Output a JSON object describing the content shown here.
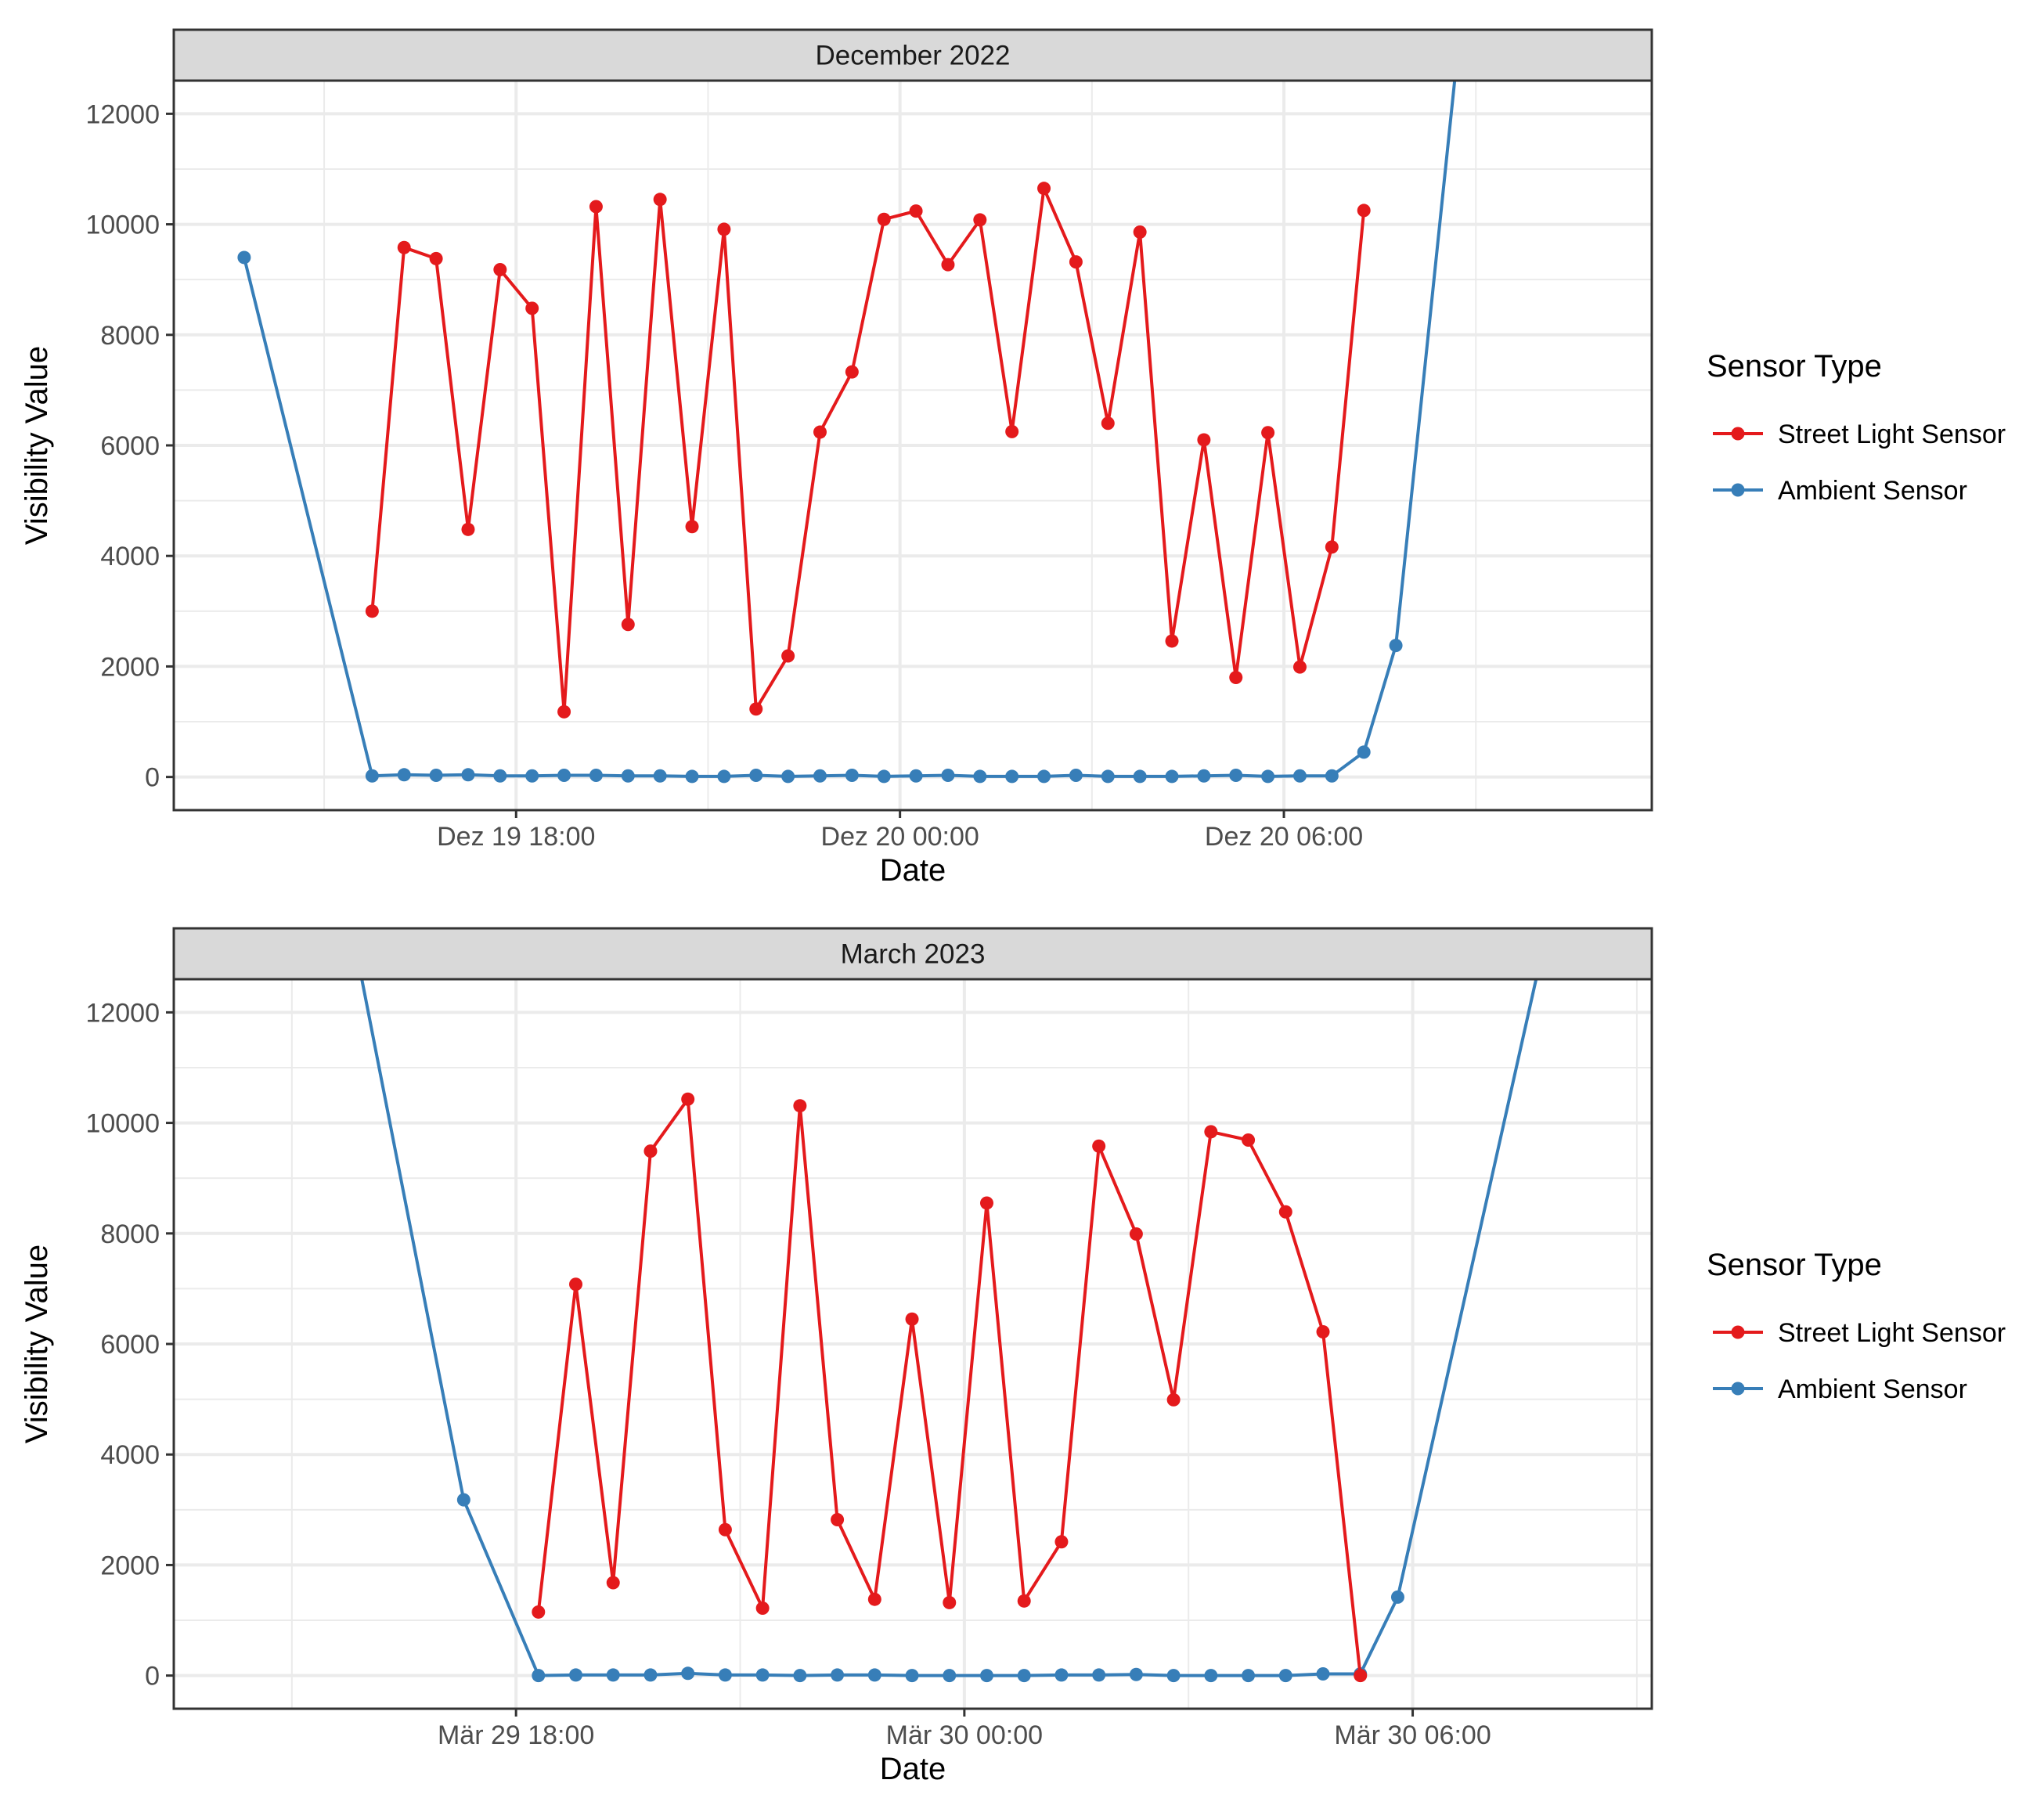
{
  "chart_data": [
    {
      "type": "line",
      "title": "December 2022",
      "xlabel": "Date",
      "ylabel": "Visibility Value",
      "x_ticks": [
        "Dez 19 18:00",
        "Dez 20 00:00",
        "Dez 20 06:00"
      ],
      "x_tick_hours": [
        18,
        24,
        30
      ],
      "x_range_hours": [
        12.65,
        35.75
      ],
      "ylim": [
        -600,
        12600
      ],
      "y_ticks": [
        0,
        2000,
        4000,
        6000,
        8000,
        10000,
        12000
      ],
      "grid": true,
      "legend_position": "right",
      "series": [
        {
          "name": "Street Light Sensor",
          "color": "#E41A1C",
          "x_hours": [
            15.75,
            16.25,
            16.75,
            17.25,
            17.75,
            18.25,
            18.75,
            19.25,
            19.75,
            20.25,
            20.75,
            21.25,
            21.75,
            22.25,
            22.75,
            23.25,
            23.75,
            24.25,
            24.75,
            25.25,
            25.75,
            26.25,
            26.75,
            27.25,
            27.75,
            28.25,
            28.75,
            29.25,
            29.75,
            30.25,
            30.75,
            31.25
          ],
          "values": [
            3000,
            9580,
            9380,
            4480,
            9180,
            8480,
            1180,
            10320,
            2760,
            10450,
            4530,
            9910,
            1230,
            2190,
            6240,
            7330,
            10090,
            10240,
            9270,
            10080,
            6250,
            10650,
            9320,
            6400,
            9860,
            2460,
            6100,
            1800,
            6230,
            1990,
            4160,
            10250
          ]
        },
        {
          "name": "Ambient Sensor",
          "color": "#377EB8",
          "x_hours": [
            13.75,
            15.75,
            16.25,
            16.75,
            17.25,
            17.75,
            18.25,
            18.75,
            19.25,
            19.75,
            20.25,
            20.75,
            21.25,
            21.75,
            22.25,
            22.75,
            23.25,
            23.75,
            24.25,
            24.75,
            25.25,
            25.75,
            26.25,
            26.75,
            27.25,
            27.75,
            28.25,
            28.75,
            29.25,
            29.75,
            30.25,
            30.75,
            31.25,
            31.75,
            32.75
          ],
          "values": [
            9400,
            20,
            40,
            30,
            40,
            20,
            20,
            30,
            30,
            20,
            20,
            10,
            10,
            30,
            10,
            20,
            30,
            10,
            20,
            30,
            10,
            10,
            10,
            30,
            10,
            10,
            10,
            20,
            30,
            10,
            20,
            20,
            450,
            2380,
            13500
          ]
        }
      ]
    },
    {
      "type": "line",
      "title": "March 2023",
      "xlabel": "Date",
      "ylabel": "Visibility Value",
      "x_ticks": [
        "Mär 29 18:00",
        "Mär 30 00:00",
        "Mär 30 06:00"
      ],
      "x_tick_hours": [
        18,
        24,
        30
      ],
      "x_range_hours": [
        13.42,
        33.2
      ],
      "ylim": [
        -600,
        12600
      ],
      "y_ticks": [
        0,
        2000,
        4000,
        6000,
        8000,
        10000,
        12000
      ],
      "grid": true,
      "legend_position": "right",
      "series": [
        {
          "name": "Street Light Sensor",
          "color": "#E41A1C",
          "x_hours": [
            18.3,
            18.8,
            19.3,
            19.8,
            20.3,
            20.8,
            21.3,
            21.8,
            22.3,
            22.8,
            23.3,
            23.8,
            24.3,
            24.8,
            25.3,
            25.8,
            26.3,
            26.8,
            27.3,
            27.8,
            28.3,
            28.8,
            29.3
          ],
          "values": [
            1150,
            7080,
            1680,
            9490,
            10430,
            2640,
            1220,
            10310,
            2820,
            1380,
            6450,
            1320,
            8550,
            1350,
            2420,
            9580,
            7990,
            4990,
            9840,
            9690,
            8390,
            6220,
            0
          ]
        },
        {
          "name": "Ambient Sensor",
          "color": "#377EB8",
          "x_hours": [
            15.3,
            17.3,
            18.3,
            18.8,
            19.3,
            19.8,
            20.3,
            20.8,
            21.3,
            21.8,
            22.3,
            22.8,
            23.3,
            23.8,
            24.3,
            24.8,
            25.3,
            25.8,
            26.3,
            26.8,
            27.3,
            27.8,
            28.3,
            28.8,
            29.3,
            29.8,
            31.8
          ],
          "values": [
            17000,
            3180,
            0,
            10,
            10,
            10,
            40,
            10,
            10,
            0,
            10,
            10,
            0,
            0,
            0,
            0,
            10,
            10,
            20,
            0,
            0,
            0,
            0,
            30,
            30,
            1420,
            13500
          ]
        }
      ]
    }
  ]
}
